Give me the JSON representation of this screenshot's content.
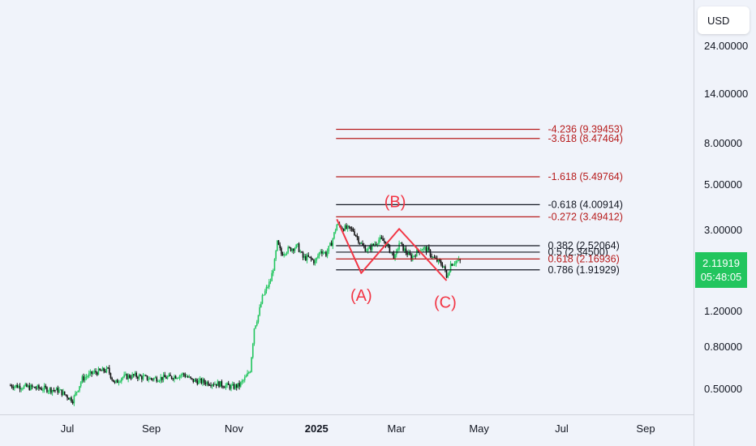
{
  "currency_button": "USD",
  "last_price": {
    "value": "2.11919",
    "countdown": "05:48:05",
    "color": "#22c55e"
  },
  "chart_data": {
    "type": "candlestick",
    "scale": "log",
    "price_ticks": [
      "24.00000",
      "14.00000",
      "8.00000",
      "5.00000",
      "3.00000",
      "1.20000",
      "0.80000",
      "0.50000"
    ],
    "price_tick_values": [
      24,
      14,
      8,
      5,
      3,
      1.2,
      0.8,
      0.5
    ],
    "time_ticks": [
      {
        "label": "Jul",
        "date": "2024-07-01",
        "bold": false
      },
      {
        "label": "Sep",
        "date": "2024-09-01",
        "bold": false
      },
      {
        "label": "Nov",
        "date": "2024-11-01",
        "bold": false
      },
      {
        "label": "2025",
        "date": "2025-01-01",
        "bold": true
      },
      {
        "label": "Mar",
        "date": "2025-03-01",
        "bold": false
      },
      {
        "label": "May",
        "date": "2025-05-01",
        "bold": false
      },
      {
        "label": "Jul",
        "date": "2025-07-01",
        "bold": false
      },
      {
        "label": "Sep",
        "date": "2025-09-01",
        "bold": false
      }
    ],
    "price_path": [
      [
        "2024-05-20",
        0.52
      ],
      [
        "2024-06-01",
        0.51
      ],
      [
        "2024-06-15",
        0.5
      ],
      [
        "2024-06-25",
        0.49
      ],
      [
        "2024-07-05",
        0.44
      ],
      [
        "2024-07-12",
        0.56
      ],
      [
        "2024-07-20",
        0.6
      ],
      [
        "2024-07-31",
        0.62
      ],
      [
        "2024-08-05",
        0.53
      ],
      [
        "2024-08-10",
        0.57
      ],
      [
        "2024-08-20",
        0.58
      ],
      [
        "2024-08-31",
        0.56
      ],
      [
        "2024-09-15",
        0.57
      ],
      [
        "2024-09-25",
        0.59
      ],
      [
        "2024-10-01",
        0.55
      ],
      [
        "2024-10-10",
        0.54
      ],
      [
        "2024-10-20",
        0.53
      ],
      [
        "2024-10-31",
        0.51
      ],
      [
        "2024-11-05",
        0.52
      ],
      [
        "2024-11-10",
        0.57
      ],
      [
        "2024-11-13",
        0.62
      ],
      [
        "2024-11-16",
        1.0
      ],
      [
        "2024-11-19",
        1.15
      ],
      [
        "2024-11-22",
        1.4
      ],
      [
        "2024-11-25",
        1.55
      ],
      [
        "2024-11-28",
        1.7
      ],
      [
        "2024-12-01",
        2.1
      ],
      [
        "2024-12-03",
        2.6
      ],
      [
        "2024-12-06",
        2.3
      ],
      [
        "2024-12-10",
        2.4
      ],
      [
        "2024-12-14",
        2.45
      ],
      [
        "2024-12-18",
        2.5
      ],
      [
        "2024-12-22",
        2.2
      ],
      [
        "2024-12-26",
        2.2
      ],
      [
        "2024-12-31",
        2.1
      ],
      [
        "2025-01-04",
        2.4
      ],
      [
        "2025-01-08",
        2.3
      ],
      [
        "2025-01-12",
        2.6
      ],
      [
        "2025-01-16",
        3.2
      ],
      [
        "2025-01-20",
        3.1
      ],
      [
        "2025-01-24",
        3.05
      ],
      [
        "2025-01-28",
        3.0
      ],
      [
        "2025-02-01",
        2.7
      ],
      [
        "2025-02-04",
        2.5
      ],
      [
        "2025-02-08",
        2.4
      ],
      [
        "2025-02-12",
        2.55
      ],
      [
        "2025-02-16",
        2.7
      ],
      [
        "2025-02-20",
        2.65
      ],
      [
        "2025-02-24",
        2.4
      ],
      [
        "2025-02-28",
        2.2
      ],
      [
        "2025-03-03",
        2.6
      ],
      [
        "2025-03-08",
        2.35
      ],
      [
        "2025-03-12",
        2.2
      ],
      [
        "2025-03-16",
        2.35
      ],
      [
        "2025-03-20",
        2.45
      ],
      [
        "2025-03-24",
        2.4
      ],
      [
        "2025-03-28",
        2.2
      ],
      [
        "2025-04-01",
        2.1
      ],
      [
        "2025-04-05",
        2.0
      ],
      [
        "2025-04-07",
        1.75
      ],
      [
        "2025-04-10",
        2.05
      ],
      [
        "2025-04-14",
        2.12
      ],
      [
        "2025-04-17",
        2.12
      ]
    ],
    "fib_levels": [
      {
        "label": "-4.236 (9.39453)",
        "value": 9.39453,
        "color": "#b71c1c"
      },
      {
        "label": "-3.618 (8.47464)",
        "value": 8.47464,
        "color": "#b71c1c"
      },
      {
        "label": "-1.618 (5.49764)",
        "value": 5.49764,
        "color": "#b71c1c"
      },
      {
        "label": "-0.618 (4.00914)",
        "value": 4.00914,
        "color": "#131722"
      },
      {
        "label": "-0.272 (3.49412)",
        "value": 3.49412,
        "color": "#b71c1c"
      },
      {
        "label": "0.382 (2.52064)",
        "value": 2.52064,
        "color": "#131722"
      },
      {
        "label": "0.5 (2.34500)",
        "value": 2.345,
        "color": "#131722"
      },
      {
        "label": "0.618 (2.16936)",
        "value": 2.16936,
        "color": "#b71c1c"
      },
      {
        "label": "0.786 (1.91929)",
        "value": 1.91929,
        "color": "#131722"
      }
    ],
    "fib_start_date": "2025-01-16",
    "fib_end_date": "2025-07-01",
    "wave_points": [
      {
        "date": "2025-01-16",
        "value": 3.4
      },
      {
        "date": "2025-02-03",
        "value": 1.85
      },
      {
        "date": "2025-03-03",
        "value": 3.05
      },
      {
        "date": "2025-04-07",
        "value": 1.7
      }
    ],
    "wave_labels": [
      {
        "text": "(A)",
        "date": "2025-02-03",
        "value": 1.35
      },
      {
        "text": "(B)",
        "date": "2025-02-28",
        "value": 3.9
      },
      {
        "text": "(C)",
        "date": "2025-04-06",
        "value": 1.25
      }
    ],
    "colors": {
      "up": "#22c55e",
      "down": "#111111",
      "wave": "#f23645",
      "wave_text": "#f23645"
    }
  }
}
